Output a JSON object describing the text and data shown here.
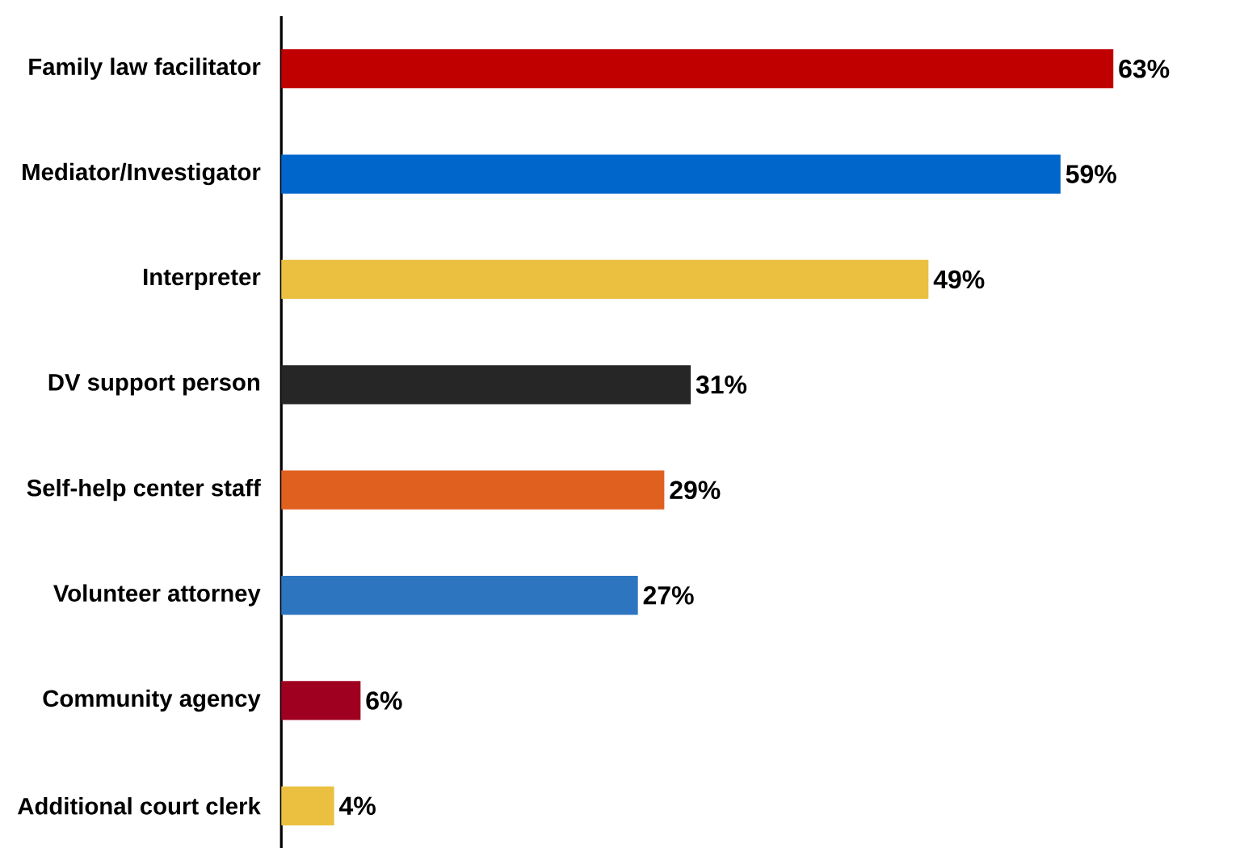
{
  "chart_data": {
    "type": "bar",
    "orientation": "horizontal",
    "categories": [
      "Family law facilitator",
      "Mediator/Investigator",
      "Interpreter",
      "DV support person",
      "Self-help center staff",
      "Volunteer attorney",
      "Community agency",
      "Additional court clerk"
    ],
    "values": [
      63,
      59,
      49,
      31,
      29,
      27,
      6,
      4
    ],
    "value_labels": [
      "63%",
      "59%",
      "49%",
      "31%",
      "29%",
      "27%",
      "6%",
      "4%"
    ],
    "colors": [
      "#c00000",
      "#0066cc",
      "#ebc040",
      "#262626",
      "#e06020",
      "#2e75c0",
      "#a00020",
      "#ebc040"
    ]
  }
}
